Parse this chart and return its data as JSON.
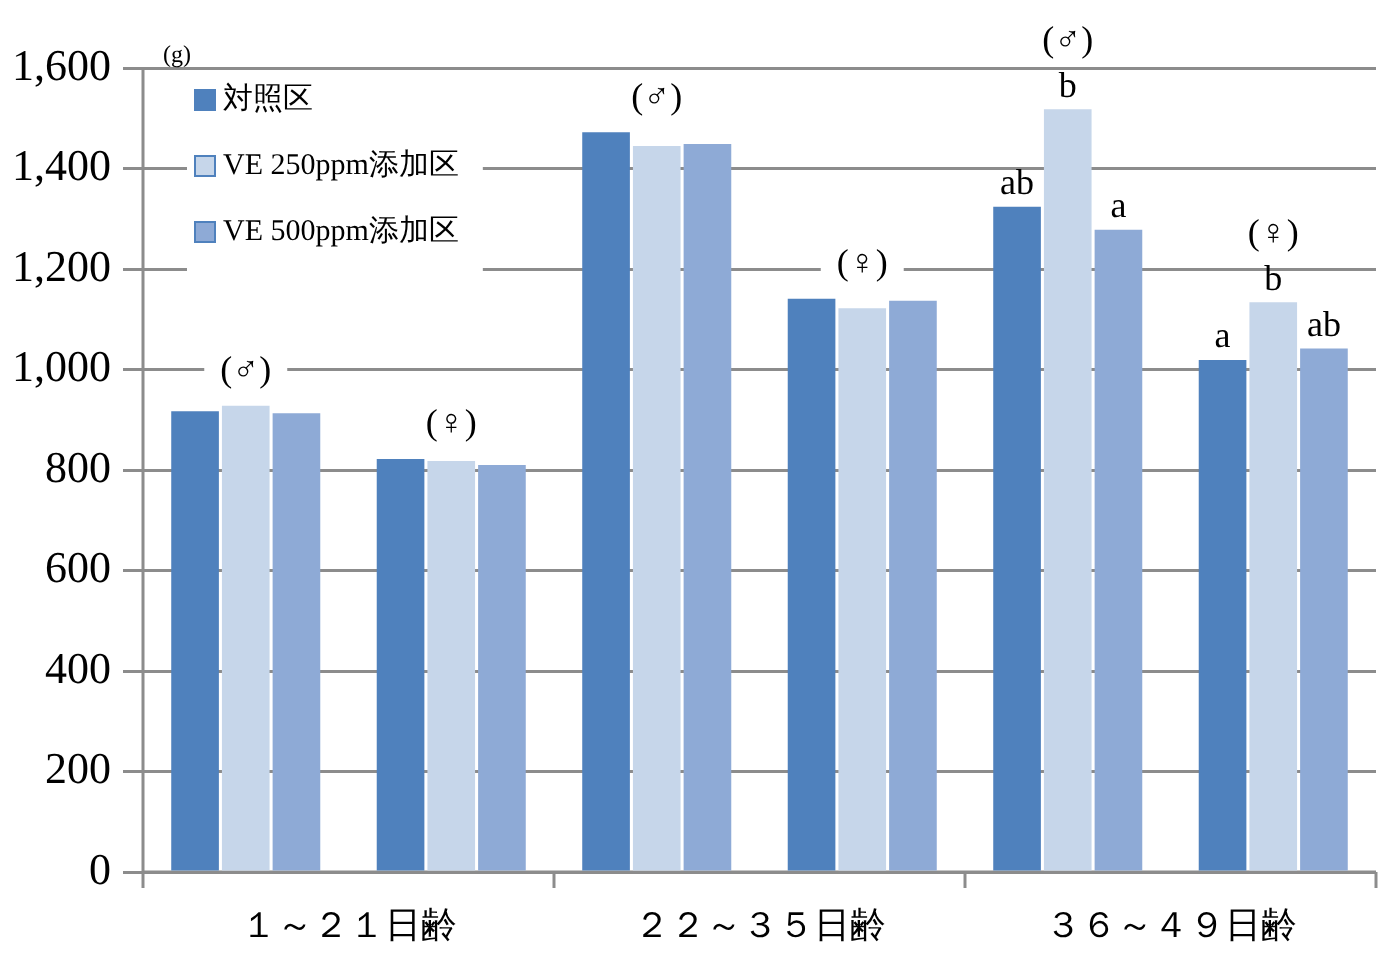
{
  "chart_data": {
    "type": "bar",
    "ylabel": "(g)",
    "categories": [
      "(♂)",
      "(♀)",
      "(♂)",
      "(♀)",
      "(♂)",
      "(♀)"
    ],
    "series": [
      {
        "name": "対照区",
        "color": "#4f81bd",
        "values": [
          917,
          822,
          1472,
          1141,
          1324,
          1019
        ],
        "value_labels": [
          null,
          null,
          null,
          null,
          "ab",
          "a"
        ]
      },
      {
        "name": "VE 250ppm添加区",
        "color": "#c6d6ea",
        "values": [
          928,
          818,
          1445,
          1122,
          1518,
          1134
        ],
        "value_labels": [
          null,
          null,
          null,
          null,
          "b",
          "b"
        ]
      },
      {
        "name": "VE 500ppm添加区",
        "color": "#8eaad6",
        "values": [
          913,
          810,
          1449,
          1137,
          1278,
          1042
        ],
        "value_labels": [
          null,
          null,
          null,
          null,
          "a",
          "ab"
        ]
      }
    ],
    "annotations": [
      "１～２１日齢",
      "２２～３５日齢",
      "３６～４９日齢"
    ],
    "ylim": [
      0,
      1600
    ],
    "yticks": [
      0,
      200,
      400,
      600,
      800,
      {
        "value": 1000,
        "label": "1,000"
      },
      {
        "value": 1200,
        "label": "1,200"
      },
      {
        "value": 1400,
        "label": "1,400"
      },
      {
        "value": 1600,
        "label": "1,600"
      }
    ],
    "grid": "y",
    "legend": "top left",
    "tick_labels": "y"
  }
}
